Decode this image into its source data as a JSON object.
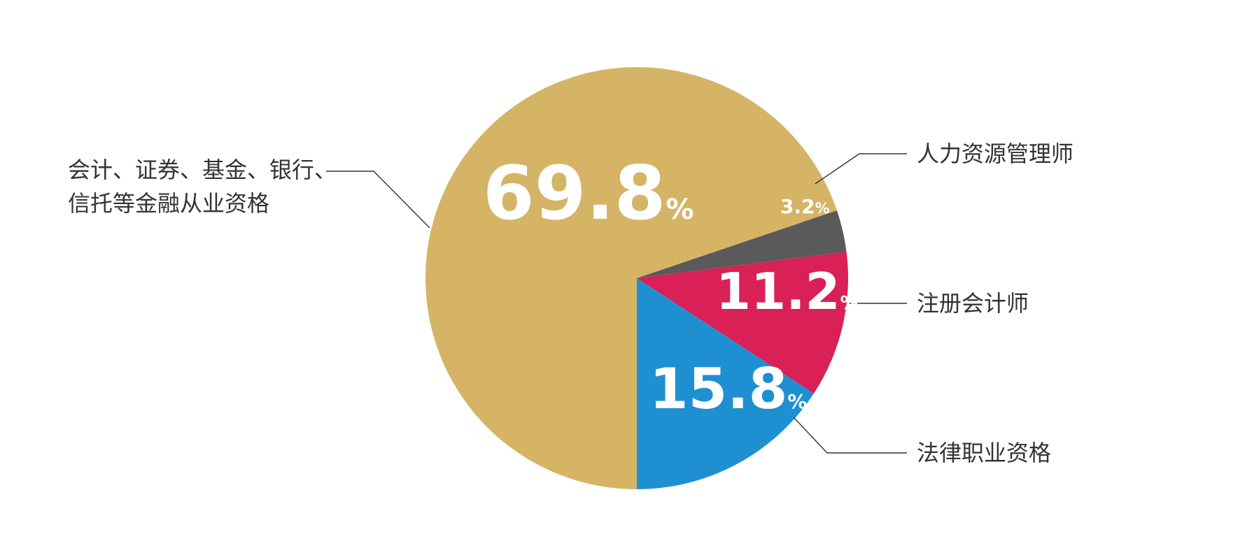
{
  "chart_data": {
    "type": "pie",
    "categories": [
      "会计、证券、基金、银行、信托等金融从业资格",
      "人力资源管理师",
      "注册会计师",
      "法律职业资格"
    ],
    "values": [
      69.8,
      3.2,
      11.2,
      15.8
    ],
    "value_labels": [
      "69.8",
      "3.2",
      "11.2",
      "15.8"
    ],
    "unit": "%",
    "category_label_lines": [
      [
        "会计、证券、基金、银行、",
        "信托等金融从业资格"
      ],
      [
        "人力资源管理师"
      ],
      [
        "注册会计师"
      ],
      [
        "法律职业资格"
      ]
    ],
    "colors": [
      "#D6B466",
      "#5A5A5A",
      "#D92057",
      "#1E90D2"
    ],
    "start": "bottom",
    "direction": "clockwise",
    "legend": "none",
    "title": ""
  }
}
